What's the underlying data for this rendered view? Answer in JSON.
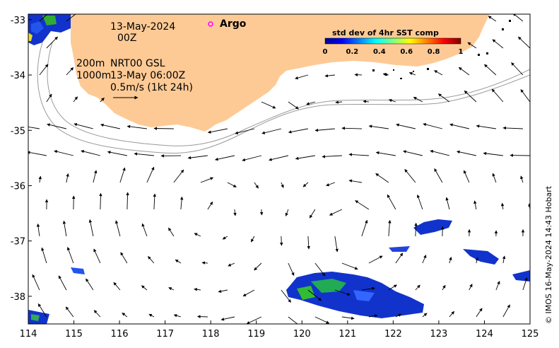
{
  "map": {
    "date": "13-May-2024",
    "hour": "00Z",
    "legend_argo": "Argo",
    "depth_200": "200m",
    "depth_1000": "1000m",
    "product": "NRT00 GSL",
    "product_time": "13-May 06:00Z",
    "scale_label": "0.5m/s (1kt 24h)",
    "credit": "© IMOS 16-May-2024 14:43 Hobart",
    "colorbar": {
      "title": "std dev of 4hr SST comp",
      "ticks": [
        "0",
        "0.2",
        "0.4",
        "0.6",
        "0.8",
        "1"
      ]
    },
    "x_ticks": [
      "114",
      "115",
      "116",
      "117",
      "118",
      "119",
      "120",
      "121",
      "122",
      "123",
      "124",
      "125"
    ],
    "y_ticks": [
      "-33",
      "-34",
      "-35",
      "-36",
      "-37",
      "-38"
    ],
    "colors": {
      "land": "#fdca95",
      "ocean": "#ffffff",
      "argo_marker": "#ff00ff",
      "isobath": "#9a9a9a"
    }
  }
}
